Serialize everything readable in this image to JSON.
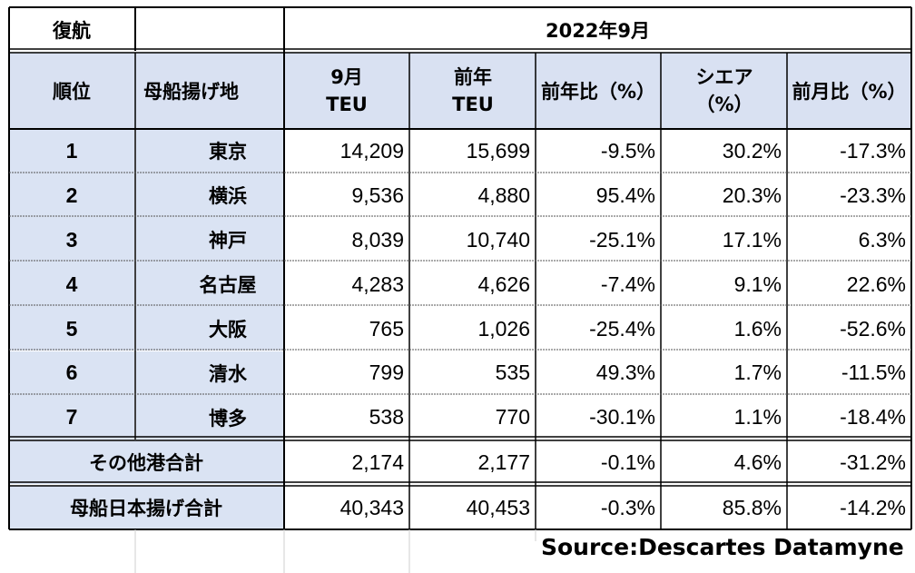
{
  "table": {
    "corner_label": "復航",
    "period": "2022年9月",
    "headers": {
      "rank": "順位",
      "port": "母船揚げ地",
      "month_top": "9月",
      "month_bottom": "TEU",
      "prev_year_top": "前年",
      "prev_year_bottom": "TEU",
      "yoy": "前年比（%）",
      "share_top": "シエア",
      "share_bottom": "（%）",
      "mom": "前月比（%）"
    },
    "rows": [
      {
        "rank": "1",
        "port": "東京",
        "teu": "14,209",
        "prev": "15,699",
        "yoy": "-9.5%",
        "share": "30.2%",
        "mom": "-17.3%"
      },
      {
        "rank": "2",
        "port": "横浜",
        "teu": "9,536",
        "prev": "4,880",
        "yoy": "95.4%",
        "share": "20.3%",
        "mom": "-23.3%"
      },
      {
        "rank": "3",
        "port": "神戸",
        "teu": "8,039",
        "prev": "10,740",
        "yoy": "-25.1%",
        "share": "17.1%",
        "mom": "6.3%"
      },
      {
        "rank": "4",
        "port": "名古屋",
        "teu": "4,283",
        "prev": "4,626",
        "yoy": "-7.4%",
        "share": "9.1%",
        "mom": "22.6%"
      },
      {
        "rank": "5",
        "port": "大阪",
        "teu": "765",
        "prev": "1,026",
        "yoy": "-25.4%",
        "share": "1.6%",
        "mom": "-52.6%"
      },
      {
        "rank": "6",
        "port": "清水",
        "teu": "799",
        "prev": "535",
        "yoy": "49.3%",
        "share": "1.7%",
        "mom": "-11.5%"
      },
      {
        "rank": "7",
        "port": "博多",
        "teu": "538",
        "prev": "770",
        "yoy": "-30.1%",
        "share": "1.1%",
        "mom": "-18.4%"
      }
    ],
    "other_total": {
      "label": "その他港合計",
      "teu": "2,174",
      "prev": "2,177",
      "yoy": "-0.1%",
      "share": "4.6%",
      "mom": "-31.2%"
    },
    "grand_total": {
      "label": "母船日本揚げ合計",
      "teu": "40,343",
      "prev": "40,453",
      "yoy": "-0.3%",
      "share": "85.8%",
      "mom": "-14.2%"
    }
  },
  "source": "Source:Descartes Datamyne",
  "colors": {
    "header_fill": "#d9e1f2",
    "label_fill": "#dae3f3",
    "grid": "#000000"
  }
}
